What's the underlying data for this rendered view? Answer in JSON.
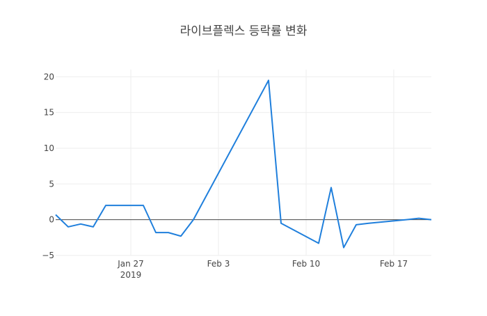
{
  "chart_data": {
    "type": "line",
    "title": "라이브플렉스 등락률 변화",
    "xlabel": "",
    "ylabel": "",
    "x": [
      "2019-01-21",
      "2019-01-22",
      "2019-01-23",
      "2019-01-24",
      "2019-01-25",
      "2019-01-28",
      "2019-01-29",
      "2019-01-30",
      "2019-01-31",
      "2019-02-01",
      "2019-02-07",
      "2019-02-08",
      "2019-02-11",
      "2019-02-12",
      "2019-02-13",
      "2019-02-14",
      "2019-02-15",
      "2019-02-18",
      "2019-02-19",
      "2019-02-20"
    ],
    "series": [
      {
        "values": [
          0.7,
          -1.0,
          -0.6,
          -1.0,
          2.0,
          2.0,
          -1.8,
          -1.8,
          -2.3,
          0.0,
          19.5,
          -0.5,
          -3.3,
          4.5,
          -3.9,
          -0.7,
          -0.5,
          0.0,
          0.2,
          0.0
        ]
      }
    ],
    "xlim": [
      "2019-01-21",
      "2019-02-20"
    ],
    "ylim": [
      -5,
      21
    ],
    "y_ticks": [
      {
        "value": -5,
        "label": "−5"
      },
      {
        "value": 0,
        "label": "0"
      },
      {
        "value": 5,
        "label": "5"
      },
      {
        "value": 10,
        "label": "10"
      },
      {
        "value": 15,
        "label": "15"
      },
      {
        "value": 20,
        "label": "20"
      }
    ],
    "x_ticks": [
      {
        "date": "2019-01-27",
        "label": "Jan 27",
        "sublabel": "2019"
      },
      {
        "date": "2019-02-03",
        "label": "Feb 3",
        "sublabel": ""
      },
      {
        "date": "2019-02-10",
        "label": "Feb 10",
        "sublabel": ""
      },
      {
        "date": "2019-02-17",
        "label": "Feb 17",
        "sublabel": ""
      }
    ],
    "grid": true,
    "line_color": "#1f7fdc",
    "zero_line_color": "#444444",
    "grid_color": "#eeeeee",
    "legend": false
  }
}
